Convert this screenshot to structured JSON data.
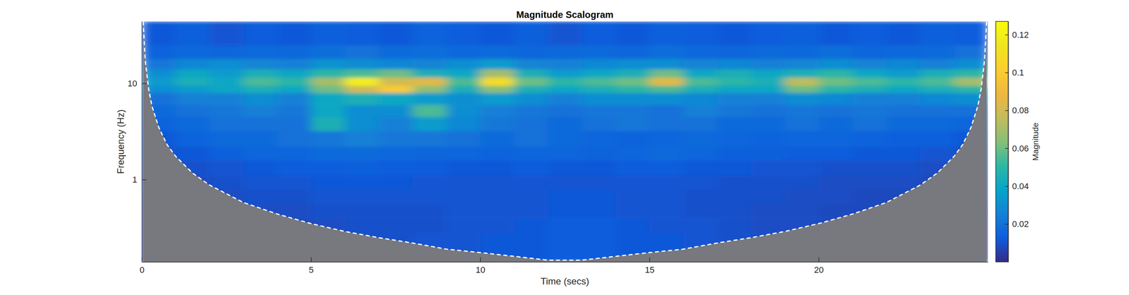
{
  "chart_data": {
    "type": "heatmap",
    "title": "Magnitude Scalogram",
    "x_label": "Time (secs)",
    "y_label": "Frequency (Hz)",
    "colorbar_label": "Magnitude",
    "log": "y",
    "xlim": [
      0,
      25
    ],
    "ylim": [
      0.14,
      44
    ],
    "xticks": [
      0,
      5,
      10,
      15,
      20
    ],
    "yticks": [
      1,
      10
    ],
    "colorbar_range": [
      0,
      0.127
    ],
    "colorbar_ticks": [
      0.02,
      0.04,
      0.06,
      0.08,
      0.1,
      0.12
    ],
    "x_edges": [
      0,
      1,
      2,
      3,
      4,
      5,
      6,
      7,
      8,
      9,
      10,
      11,
      12,
      13,
      14,
      15,
      16,
      17,
      18,
      19,
      20,
      21,
      22,
      23,
      24,
      25
    ],
    "y_edges": [
      0.14,
      0.2,
      0.28,
      0.4,
      0.56,
      0.8,
      1.1,
      1.6,
      2.2,
      3.2,
      4.5,
      6,
      8,
      9.5,
      11.5,
      14,
      18,
      25,
      44
    ],
    "cells": [
      [
        0.005,
        0.006,
        0.007,
        0.008,
        0.008,
        0.009,
        0.01,
        0.01,
        0.011,
        0.011,
        0.012,
        0.012,
        0.013,
        0.013,
        0.012,
        0.012,
        0.011,
        0.01,
        0.01,
        0.009,
        0.008,
        0.007,
        0.007,
        0.006,
        0.005
      ],
      [
        0.005,
        0.006,
        0.007,
        0.008,
        0.008,
        0.009,
        0.01,
        0.01,
        0.011,
        0.011,
        0.012,
        0.012,
        0.013,
        0.013,
        0.012,
        0.012,
        0.011,
        0.01,
        0.01,
        0.009,
        0.008,
        0.007,
        0.007,
        0.006,
        0.005
      ],
      [
        0.005,
        0.006,
        0.007,
        0.008,
        0.008,
        0.009,
        0.01,
        0.01,
        0.01,
        0.011,
        0.011,
        0.012,
        0.013,
        0.013,
        0.012,
        0.011,
        0.011,
        0.01,
        0.009,
        0.009,
        0.008,
        0.007,
        0.007,
        0.006,
        0.005
      ],
      [
        0.006,
        0.007,
        0.008,
        0.009,
        0.009,
        0.01,
        0.01,
        0.01,
        0.01,
        0.011,
        0.011,
        0.011,
        0.012,
        0.012,
        0.011,
        0.011,
        0.01,
        0.01,
        0.009,
        0.009,
        0.008,
        0.008,
        0.007,
        0.007,
        0.006
      ],
      [
        0.007,
        0.008,
        0.009,
        0.01,
        0.01,
        0.011,
        0.011,
        0.011,
        0.011,
        0.011,
        0.011,
        0.011,
        0.012,
        0.012,
        0.011,
        0.011,
        0.01,
        0.01,
        0.01,
        0.009,
        0.009,
        0.008,
        0.008,
        0.007,
        0.007
      ],
      [
        0.008,
        0.009,
        0.01,
        0.011,
        0.011,
        0.012,
        0.012,
        0.012,
        0.011,
        0.011,
        0.011,
        0.011,
        0.011,
        0.011,
        0.011,
        0.011,
        0.011,
        0.01,
        0.01,
        0.01,
        0.009,
        0.009,
        0.009,
        0.008,
        0.008
      ],
      [
        0.009,
        0.01,
        0.011,
        0.012,
        0.013,
        0.013,
        0.014,
        0.013,
        0.013,
        0.012,
        0.012,
        0.013,
        0.012,
        0.012,
        0.013,
        0.013,
        0.012,
        0.012,
        0.011,
        0.011,
        0.01,
        0.01,
        0.01,
        0.009,
        0.009
      ],
      [
        0.01,
        0.012,
        0.014,
        0.016,
        0.016,
        0.018,
        0.018,
        0.017,
        0.016,
        0.016,
        0.015,
        0.016,
        0.016,
        0.015,
        0.016,
        0.018,
        0.016,
        0.014,
        0.014,
        0.013,
        0.013,
        0.012,
        0.012,
        0.011,
        0.01
      ],
      [
        0.012,
        0.015,
        0.018,
        0.018,
        0.02,
        0.022,
        0.025,
        0.022,
        0.022,
        0.02,
        0.018,
        0.02,
        0.018,
        0.016,
        0.015,
        0.016,
        0.018,
        0.016,
        0.015,
        0.016,
        0.016,
        0.015,
        0.014,
        0.014,
        0.012
      ],
      [
        0.015,
        0.018,
        0.02,
        0.02,
        0.02,
        0.045,
        0.03,
        0.025,
        0.035,
        0.028,
        0.022,
        0.02,
        0.018,
        0.02,
        0.022,
        0.02,
        0.02,
        0.018,
        0.018,
        0.02,
        0.018,
        0.02,
        0.018,
        0.018,
        0.016
      ],
      [
        0.018,
        0.02,
        0.022,
        0.025,
        0.022,
        0.04,
        0.03,
        0.03,
        0.055,
        0.03,
        0.025,
        0.022,
        0.02,
        0.022,
        0.022,
        0.02,
        0.025,
        0.022,
        0.02,
        0.022,
        0.02,
        0.022,
        0.02,
        0.02,
        0.02
      ],
      [
        0.02,
        0.025,
        0.025,
        0.03,
        0.025,
        0.04,
        0.045,
        0.04,
        0.035,
        0.03,
        0.035,
        0.03,
        0.025,
        0.03,
        0.03,
        0.03,
        0.028,
        0.025,
        0.025,
        0.03,
        0.028,
        0.025,
        0.025,
        0.028,
        0.03
      ],
      [
        0.03,
        0.035,
        0.04,
        0.045,
        0.04,
        0.06,
        0.08,
        0.1,
        0.065,
        0.045,
        0.065,
        0.045,
        0.04,
        0.045,
        0.05,
        0.055,
        0.045,
        0.04,
        0.04,
        0.06,
        0.05,
        0.045,
        0.04,
        0.045,
        0.05
      ],
      [
        0.035,
        0.045,
        0.04,
        0.055,
        0.05,
        0.07,
        0.12,
        0.08,
        0.085,
        0.055,
        0.11,
        0.06,
        0.05,
        0.055,
        0.06,
        0.085,
        0.055,
        0.05,
        0.045,
        0.075,
        0.06,
        0.055,
        0.05,
        0.055,
        0.07
      ],
      [
        0.03,
        0.04,
        0.035,
        0.045,
        0.04,
        0.05,
        0.055,
        0.06,
        0.045,
        0.04,
        0.07,
        0.045,
        0.035,
        0.04,
        0.045,
        0.06,
        0.04,
        0.045,
        0.04,
        0.045,
        0.05,
        0.04,
        0.035,
        0.045,
        0.05
      ],
      [
        0.022,
        0.028,
        0.03,
        0.027,
        0.025,
        0.032,
        0.03,
        0.028,
        0.026,
        0.03,
        0.035,
        0.027,
        0.025,
        0.028,
        0.03,
        0.03,
        0.026,
        0.028,
        0.025,
        0.027,
        0.03,
        0.026,
        0.028,
        0.025,
        0.03
      ],
      [
        0.015,
        0.017,
        0.016,
        0.018,
        0.017,
        0.019,
        0.02,
        0.018,
        0.019,
        0.017,
        0.018,
        0.016,
        0.017,
        0.018,
        0.016,
        0.019,
        0.017,
        0.016,
        0.018,
        0.017,
        0.019,
        0.016,
        0.017,
        0.018,
        0.02
      ],
      [
        0.012,
        0.014,
        0.011,
        0.013,
        0.012,
        0.014,
        0.013,
        0.012,
        0.015,
        0.013,
        0.012,
        0.014,
        0.011,
        0.013,
        0.012,
        0.014,
        0.013,
        0.012,
        0.013,
        0.014,
        0.012,
        0.013,
        0.012,
        0.014,
        0.013
      ]
    ],
    "coi": {
      "x": [
        0.04,
        0.1,
        0.2,
        0.3,
        0.5,
        0.75,
        1,
        1.5,
        2,
        3,
        4,
        5,
        6,
        7,
        8,
        9,
        10,
        11,
        12,
        13,
        14,
        15,
        16,
        17,
        18,
        19,
        20,
        21,
        22,
        23,
        23.5,
        24,
        24.25,
        24.5,
        24.7,
        24.8,
        24.9,
        24.96
      ],
      "values": [
        44,
        17.5,
        8.8,
        5.8,
        3.5,
        2.3,
        1.75,
        1.17,
        0.88,
        0.58,
        0.44,
        0.35,
        0.29,
        0.25,
        0.22,
        0.19,
        0.175,
        0.16,
        0.146,
        0.146,
        0.16,
        0.175,
        0.19,
        0.22,
        0.25,
        0.29,
        0.35,
        0.44,
        0.58,
        0.88,
        1.17,
        1.75,
        2.3,
        3.5,
        5.8,
        8.8,
        17.5,
        44
      ]
    }
  }
}
